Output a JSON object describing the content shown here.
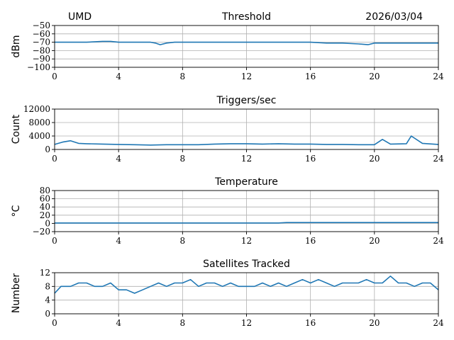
{
  "header": {
    "station": "UMD",
    "date": "2026/03/04"
  },
  "colors": {
    "series": "#1f77b4",
    "grid": "#b0b0b0",
    "axes": "#000000"
  },
  "chart_data": [
    {
      "type": "line",
      "title": "Threshold",
      "ylabel": "dBm",
      "xlim": [
        0,
        24
      ],
      "xticks": [
        0,
        4,
        8,
        12,
        16,
        20,
        24
      ],
      "ylim": [
        -100,
        -50
      ],
      "yticks": [
        -100,
        -90,
        -80,
        -70,
        -60,
        -50
      ],
      "ytick_labels": [
        "−100",
        "−90",
        "−80",
        "−70",
        "−60",
        "−50"
      ],
      "grid": true,
      "series": [
        {
          "x": [
            0,
            1,
            2,
            3,
            3.5,
            4,
            5,
            6,
            6.3,
            6.6,
            7,
            7.5,
            8,
            10,
            12,
            14,
            16,
            17,
            18,
            19,
            19.6,
            20,
            21,
            22,
            23,
            24
          ],
          "y": [
            -70,
            -70,
            -70,
            -69,
            -69,
            -70,
            -70,
            -70,
            -71,
            -73,
            -71,
            -70,
            -70,
            -70,
            -70,
            -70,
            -70,
            -71,
            -71,
            -72,
            -73,
            -71,
            -71,
            -71,
            -71,
            -71
          ]
        }
      ]
    },
    {
      "type": "line",
      "title": "Triggers/sec",
      "ylabel": "Count",
      "xlim": [
        0,
        24
      ],
      "xticks": [
        0,
        4,
        8,
        12,
        16,
        20,
        24
      ],
      "ylim": [
        0,
        12000
      ],
      "yticks": [
        0,
        4000,
        8000,
        12000
      ],
      "ytick_labels": [
        "0",
        "4000",
        "8000",
        "12000"
      ],
      "grid": true,
      "series": [
        {
          "x": [
            0,
            0.5,
            1,
            1.5,
            2,
            3,
            4,
            5,
            6,
            7,
            8,
            9,
            10,
            11,
            12,
            13,
            14,
            15,
            16,
            17,
            18,
            19,
            20,
            20.5,
            21,
            22,
            22.3,
            23,
            24
          ],
          "y": [
            1500,
            2200,
            2600,
            1800,
            1700,
            1600,
            1500,
            1400,
            1300,
            1400,
            1400,
            1400,
            1600,
            1700,
            1700,
            1600,
            1700,
            1600,
            1600,
            1500,
            1500,
            1400,
            1400,
            3000,
            1600,
            1700,
            4000,
            1800,
            1500
          ]
        }
      ]
    },
    {
      "type": "line",
      "title": "Temperature",
      "ylabel": "°C",
      "xlim": [
        0,
        24
      ],
      "xticks": [
        0,
        4,
        8,
        12,
        16,
        20,
        24
      ],
      "ylim": [
        -20,
        80
      ],
      "yticks": [
        -20,
        0,
        20,
        40,
        60,
        80
      ],
      "ytick_labels": [
        "−20",
        "0",
        "20",
        "40",
        "60",
        "80"
      ],
      "grid": true,
      "series": [
        {
          "x": [
            0,
            4,
            8,
            12,
            14,
            14.5,
            16,
            20,
            24
          ],
          "y": [
            1,
            1,
            1,
            1,
            1,
            2,
            2,
            2,
            2
          ]
        }
      ]
    },
    {
      "type": "line",
      "title": "Satellites Tracked",
      "ylabel": "Number",
      "xlim": [
        0,
        24
      ],
      "xticks": [
        0,
        4,
        8,
        12,
        16,
        20,
        24
      ],
      "ylim": [
        0,
        12
      ],
      "yticks": [
        0,
        4,
        8,
        12
      ],
      "ytick_labels": [
        "0",
        "4",
        "8",
        "12"
      ],
      "grid": true,
      "series": [
        {
          "x": [
            0,
            0.2,
            0.4,
            1,
            1.5,
            2,
            2.5,
            3,
            3.5,
            4,
            4.5,
            5,
            5.5,
            6,
            6.5,
            7,
            7.5,
            8,
            8.5,
            9,
            9.5,
            10,
            10.5,
            11,
            11.5,
            12,
            12.5,
            13,
            13.5,
            14,
            14.5,
            15,
            15.5,
            16,
            16.5,
            17,
            17.5,
            18,
            18.5,
            19,
            19.5,
            20,
            20.5,
            21,
            21.5,
            22,
            22.5,
            23,
            23.5,
            24
          ],
          "y": [
            6,
            7,
            8,
            8,
            9,
            9,
            8,
            8,
            9,
            7,
            7,
            6,
            7,
            8,
            9,
            8,
            9,
            9,
            10,
            8,
            9,
            9,
            8,
            9,
            8,
            8,
            8,
            9,
            8,
            9,
            8,
            9,
            10,
            9,
            10,
            9,
            8,
            9,
            9,
            9,
            10,
            9,
            9,
            11,
            9,
            9,
            8,
            9,
            9,
            7
          ]
        }
      ]
    }
  ]
}
